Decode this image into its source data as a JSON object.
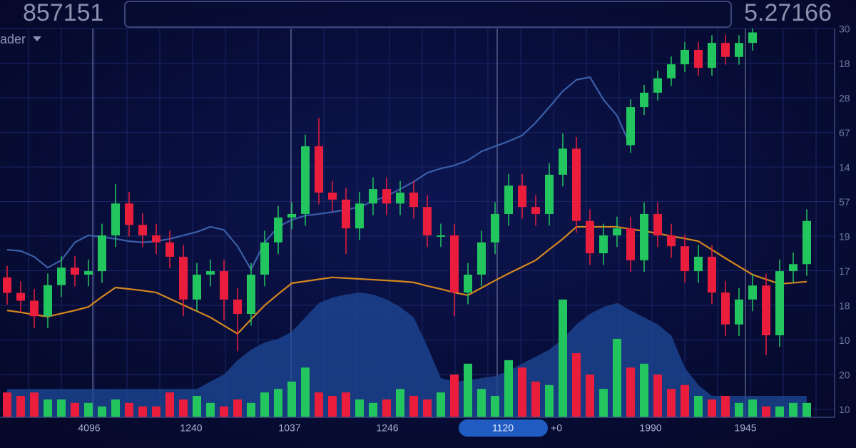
{
  "chart_data": {
    "type": "candlestick",
    "header_left": "857151",
    "header_right": "5.27166",
    "indicator_label": "ader",
    "x_labels": [
      "4096",
      "1240",
      "1037",
      "1246",
      "1120",
      "+0",
      "1990",
      "1945"
    ],
    "y_labels": [
      "30",
      "18",
      "28",
      "67",
      "14",
      "57",
      "19",
      "17",
      "18",
      "10",
      "20",
      "10"
    ],
    "ylim": [
      0,
      100
    ],
    "y2lim": [
      0,
      100
    ],
    "up_color": "#22c55e",
    "down_color": "#ea1d3c",
    "area": {
      "type": "area",
      "color": "#1d4a9a",
      "values": [
        7.3,
        7.3,
        7.3,
        7.3,
        7.3,
        7.3,
        7.3,
        7.3,
        7.3,
        7.3,
        7.3,
        7.3,
        7.3,
        7.3,
        7.3,
        9.2,
        11,
        14.7,
        17.4,
        19.3,
        20.2,
        22,
        25.7,
        29.4,
        30.8,
        31.6,
        32.1,
        31.6,
        30.3,
        28.4,
        25.7,
        18.3,
        10.1,
        9.2,
        9.5,
        10.1,
        10.6,
        11.9,
        13.8,
        15.6,
        17.4,
        20.2,
        23.9,
        26.6,
        28.4,
        29.4,
        27.5,
        25.7,
        23.9,
        21.1,
        12.8,
        8.3,
        5.5,
        5.5,
        5.5,
        5.5,
        5.5,
        5.5,
        5.5,
        5.5
      ]
    },
    "volume": {
      "type": "volume",
      "axis": "y2",
      "values": [
        6.4,
        5.5,
        6.4,
        4.6,
        4.6,
        3.7,
        3.7,
        2.8,
        4.6,
        3.7,
        2.8,
        2.8,
        6.4,
        4.6,
        5.5,
        3.7,
        2.8,
        4.6,
        3.7,
        6.4,
        7.3,
        9.2,
        12.8,
        6.4,
        5.5,
        6.4,
        4.6,
        3.7,
        4.6,
        7.3,
        5.5,
        4.6,
        6.4,
        11,
        13.8,
        7.3,
        5.5,
        14.7,
        12.8,
        9.2,
        8.3,
        30.3,
        16.5,
        11,
        7.3,
        20.2,
        12.8,
        13.8,
        11,
        7.3,
        8.3,
        5.5,
        4.6,
        5.5,
        3.7,
        4.6,
        2.8,
        2.8,
        3.7,
        3.7
      ]
    },
    "lines": [
      {
        "type": "line",
        "color": "#3a5fa8",
        "values": [
          43.1,
          42.8,
          41.3,
          38.5,
          40.4,
          45,
          46.8,
          46.4,
          45.9,
          45.3,
          45,
          45.3,
          45.9,
          46.8,
          47.7,
          49,
          48.2,
          44,
          38,
          45,
          49,
          50.8,
          51.9,
          52.3,
          52.8,
          53.4,
          54.1,
          55.6,
          56.9,
          58.7,
          60.6,
          62.9,
          64,
          64.8,
          66.1,
          68.4,
          69.7,
          71,
          72.5,
          75.8,
          79.8,
          83.9,
          86.8,
          87.5,
          81.7,
          77.6,
          69.7,
          null,
          null,
          null,
          null,
          null,
          null,
          null,
          null,
          null,
          null,
          null,
          null,
          null
        ]
      },
      {
        "type": "line",
        "color": "#d4871e",
        "values": [
          27.5,
          27,
          26.4,
          25.9,
          26.7,
          27.5,
          28.4,
          31,
          33.4,
          33,
          32.6,
          32.1,
          30.5,
          28.9,
          27.3,
          25.7,
          23.6,
          21.5,
          25.2,
          28.8,
          31.7,
          34.5,
          35,
          35.5,
          36,
          35.8,
          35.6,
          35.4,
          35.2,
          35,
          34.7,
          33.8,
          33,
          32.1,
          31.4,
          33.3,
          35.2,
          37,
          38.7,
          40.4,
          43.2,
          45.9,
          49,
          49,
          49,
          49,
          48.4,
          47.9,
          47.3,
          46.6,
          46,
          45.3,
          43.1,
          40.9,
          38.8,
          36.7,
          35.5,
          34.3,
          34.6,
          34.9
        ]
      }
    ],
    "candles": [
      {
        "type": "candles",
        "open": [
          36,
          32,
          30,
          26,
          34,
          38.5,
          36.7,
          37.6,
          46.8,
          55,
          49.5,
          46.8,
          45,
          41.3,
          30.3,
          36.7,
          37.6,
          30.3,
          26.6,
          36.7,
          45,
          51.4,
          52.3,
          69.7,
          57.8,
          56,
          48.6,
          55,
          58.7,
          55,
          57.8,
          54.1,
          46.8,
          46.8,
          32.1,
          36.7,
          45,
          52.3,
          59.6,
          54.1,
          52.3,
          62.4,
          69.1,
          50.5,
          42.2,
          46.8,
          48.6,
          40.4,
          52.3,
          46.8,
          44,
          37.6,
          41.3,
          32.1,
          23.9,
          30.3,
          33.9,
          21.1,
          37.6,
          39.4
        ],
        "high": [
          39,
          35,
          33,
          37,
          41.5,
          41.5,
          40.6,
          49.8,
          60,
          58,
          52.5,
          49.8,
          48,
          44.3,
          39.7,
          40.6,
          40.6,
          33.3,
          39.7,
          48,
          54.4,
          55.3,
          72.7,
          77,
          60.8,
          59,
          58,
          61.7,
          61.7,
          60.8,
          60.8,
          57.1,
          49.8,
          49.8,
          39.7,
          48,
          55.3,
          62.6,
          62.6,
          57.1,
          65.4,
          73,
          72.1,
          53.5,
          49.8,
          51.6,
          51.6,
          55.3,
          55.3,
          49.8,
          47,
          44.3,
          44.3,
          35.1,
          33.3,
          36.9,
          36.9,
          40.6,
          42.4,
          53.5
        ],
        "low": [
          29,
          27,
          23,
          23,
          31,
          33.7,
          33.7,
          34.6,
          43.8,
          46.5,
          43.8,
          42,
          38.3,
          26,
          27.3,
          33.7,
          25,
          17,
          23.6,
          33.7,
          42,
          48.4,
          49.3,
          54.8,
          53,
          42,
          45.6,
          52,
          52,
          52,
          51.1,
          43.8,
          43.8,
          26,
          29.1,
          33.7,
          42,
          49.3,
          51.1,
          49.3,
          49.3,
          59.4,
          47.5,
          39.2,
          39.2,
          43.8,
          37.4,
          37.4,
          43.8,
          41,
          34.6,
          34.6,
          29.1,
          20.9,
          20.9,
          27.3,
          16,
          18.1,
          34.6,
          36.4
        ],
        "close": [
          32,
          30,
          26,
          34,
          38.5,
          36.7,
          37.6,
          46.8,
          55,
          49.5,
          46.8,
          45,
          41.3,
          30.3,
          36.7,
          37.6,
          30.3,
          26.6,
          36.7,
          45,
          51.4,
          52.3,
          69.7,
          57.8,
          56,
          48.6,
          55,
          58.7,
          55,
          57.8,
          54.1,
          46.8,
          46.8,
          32.1,
          36.7,
          45,
          52.3,
          59.6,
          54.1,
          52.3,
          62.4,
          69.1,
          50.5,
          42.2,
          46.8,
          48.6,
          40.4,
          52.3,
          46.8,
          44,
          37.6,
          41.3,
          32.1,
          23.9,
          30.3,
          33.9,
          21.1,
          37.6,
          39.4,
          50.5
        ]
      },
      {
        "type": "candles",
        "open": [
          null,
          null,
          null,
          null,
          null,
          null,
          null,
          null,
          null,
          null,
          null,
          null,
          null,
          null,
          null,
          null,
          null,
          null,
          null,
          null,
          null,
          null,
          null,
          null,
          null,
          null,
          null,
          null,
          null,
          null,
          null,
          null,
          null,
          null,
          null,
          null,
          null,
          null,
          null,
          null,
          null,
          null,
          null,
          null,
          null,
          null,
          70,
          79.8,
          83.5,
          87.2,
          90.8,
          94.5,
          89.9,
          96.3,
          92.7,
          96.3,
          null,
          null,
          null,
          null
        ],
        "high": [
          null,
          null,
          null,
          null,
          null,
          null,
          null,
          null,
          null,
          null,
          null,
          null,
          null,
          null,
          null,
          null,
          null,
          null,
          null,
          null,
          null,
          null,
          null,
          null,
          null,
          null,
          null,
          null,
          null,
          null,
          null,
          null,
          null,
          null,
          null,
          null,
          null,
          null,
          null,
          null,
          null,
          null,
          null,
          null,
          null,
          null,
          81.8,
          85.5,
          89.2,
          92.8,
          96.5,
          96.5,
          98.3,
          98.3,
          98.3,
          100,
          null,
          null,
          null,
          null
        ],
        "low": [
          null,
          null,
          null,
          null,
          null,
          null,
          null,
          null,
          null,
          null,
          null,
          null,
          null,
          null,
          null,
          null,
          null,
          null,
          null,
          null,
          null,
          null,
          null,
          null,
          null,
          null,
          null,
          null,
          null,
          null,
          null,
          null,
          null,
          null,
          null,
          null,
          null,
          null,
          null,
          null,
          null,
          null,
          null,
          null,
          null,
          null,
          68,
          77.8,
          81.5,
          85.2,
          88.8,
          87.9,
          87.9,
          90.7,
          90.7,
          94.3,
          null,
          null,
          null,
          null
        ],
        "close": [
          null,
          null,
          null,
          null,
          null,
          null,
          null,
          null,
          null,
          null,
          null,
          null,
          null,
          null,
          null,
          null,
          null,
          null,
          null,
          null,
          null,
          null,
          null,
          null,
          null,
          null,
          null,
          null,
          null,
          null,
          null,
          null,
          null,
          null,
          null,
          null,
          null,
          null,
          null,
          null,
          null,
          null,
          null,
          null,
          null,
          null,
          79.8,
          83.5,
          87.2,
          90.8,
          94.5,
          89.9,
          96.3,
          92.7,
          96.3,
          99,
          null,
          null,
          null,
          null
        ]
      }
    ]
  }
}
